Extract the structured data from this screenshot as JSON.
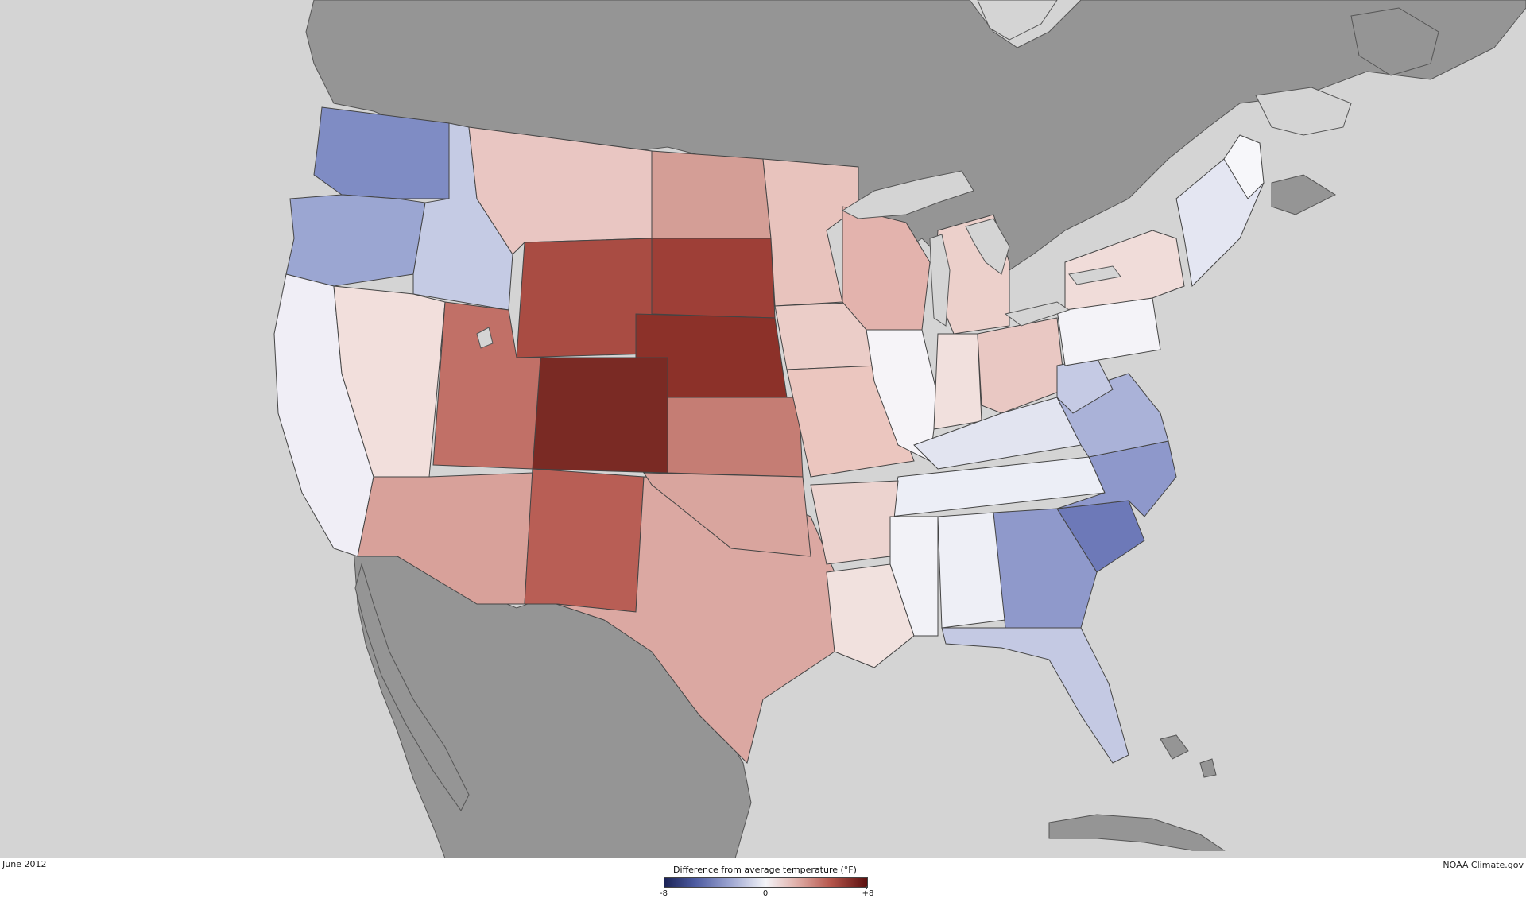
{
  "map": {
    "date": "June 2012",
    "credit": "NOAA Climate.gov",
    "legend": {
      "title": "Difference from average temperature (°F)",
      "min_label": "-8",
      "mid_label": "0",
      "max_label": "+8",
      "scale_min": -8,
      "scale_max": 8
    },
    "colors": {
      "ocean": "#d4d4d4",
      "foreign_land": "#959595",
      "cold_extreme": "#1b2355",
      "neutral": "#f4f4f8",
      "warm_extreme": "#5a0f0e"
    }
  }
}
